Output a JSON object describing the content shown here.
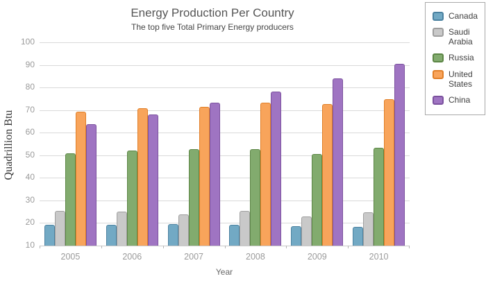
{
  "chart_data": {
    "type": "bar",
    "title": "Energy Production Per Country",
    "subtitle": "The top five Total Primary Energy producers",
    "xlabel": "Year",
    "ylabel": "Quadrillion Btu",
    "categories": [
      "2005",
      "2006",
      "2007",
      "2008",
      "2009",
      "2010"
    ],
    "ylim": [
      10,
      100
    ],
    "ytick_step": 10,
    "yticks": [
      10,
      20,
      30,
      40,
      50,
      60,
      70,
      80,
      90,
      100
    ],
    "grid": true,
    "legend_position": "top-right",
    "series": [
      {
        "name": "Canada",
        "fill": "#72a9c4",
        "stroke": "#4a81a0",
        "values": [
          19.1,
          19.3,
          19.5,
          19.2,
          18.5,
          18.4
        ]
      },
      {
        "name": "Saudi Arabia",
        "fill": "#c9c9c9",
        "stroke": "#9e9e9e",
        "values": [
          25.5,
          24.9,
          23.8,
          25.4,
          23.0,
          24.8
        ]
      },
      {
        "name": "Russia",
        "fill": "#82ab6e",
        "stroke": "#5b8544",
        "values": [
          51.0,
          52.0,
          52.6,
          52.6,
          50.5,
          53.3
        ]
      },
      {
        "name": "United States",
        "fill": "#f8a45b",
        "stroke": "#e07e26",
        "values": [
          69.4,
          70.7,
          71.4,
          73.2,
          72.6,
          74.8
        ]
      },
      {
        "name": "China",
        "fill": "#9f74c2",
        "stroke": "#7b519e",
        "values": [
          63.9,
          68.1,
          73.3,
          78.3,
          84.0,
          90.4
        ]
      }
    ]
  }
}
